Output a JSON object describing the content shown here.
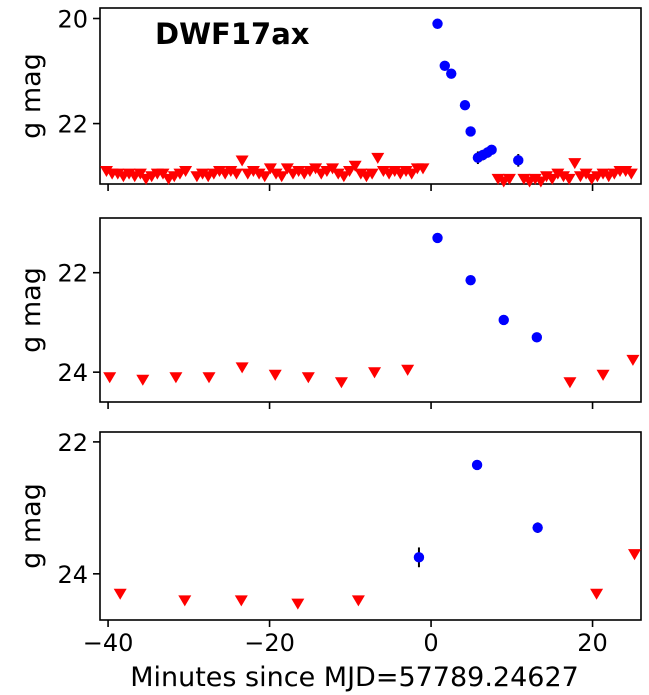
{
  "chart_data": [
    {
      "type": "scatter",
      "title": "DWF17ax",
      "ylabel": "g mag",
      "xlim": [
        -41,
        26
      ],
      "ylim": [
        23.15,
        19.8
      ],
      "y_inverted": true,
      "yticks": [
        20,
        22
      ],
      "xticks": [
        -40,
        -20,
        0,
        20
      ],
      "x_tick_labels_shown": false,
      "detections": {
        "name": "detections",
        "color": "#0000ff",
        "points": [
          {
            "x": 0.8,
            "y": 20.1
          },
          {
            "x": 1.7,
            "y": 20.9
          },
          {
            "x": 2.5,
            "y": 21.05
          },
          {
            "x": 4.2,
            "y": 21.65
          },
          {
            "x": 4.9,
            "y": 22.15
          },
          {
            "x": 5.8,
            "y": 22.65,
            "err": 0.12
          },
          {
            "x": 6.4,
            "y": 22.6,
            "err": 0.1
          },
          {
            "x": 7.0,
            "y": 22.55,
            "err": 0.1
          },
          {
            "x": 7.5,
            "y": 22.5,
            "err": 0.08
          },
          {
            "x": 10.8,
            "y": 22.7,
            "err": 0.12
          }
        ]
      },
      "upper_limits": {
        "name": "upper limits",
        "color": "#ff0000",
        "points": [
          {
            "x": -40.2,
            "y": 22.9
          },
          {
            "x": -39.5,
            "y": 22.95
          },
          {
            "x": -38.8,
            "y": 22.95
          },
          {
            "x": -38.1,
            "y": 23.0
          },
          {
            "x": -37.4,
            "y": 22.95
          },
          {
            "x": -36.7,
            "y": 23.0
          },
          {
            "x": -36.0,
            "y": 22.95
          },
          {
            "x": -35.3,
            "y": 23.05
          },
          {
            "x": -34.6,
            "y": 23.0
          },
          {
            "x": -33.9,
            "y": 22.95
          },
          {
            "x": -33.2,
            "y": 22.95
          },
          {
            "x": -32.5,
            "y": 23.05
          },
          {
            "x": -31.8,
            "y": 23.0
          },
          {
            "x": -31.1,
            "y": 22.95
          },
          {
            "x": -30.4,
            "y": 22.9
          },
          {
            "x": -29.0,
            "y": 23.0
          },
          {
            "x": -28.3,
            "y": 22.95
          },
          {
            "x": -27.6,
            "y": 23.0
          },
          {
            "x": -26.9,
            "y": 22.95
          },
          {
            "x": -26.2,
            "y": 22.9
          },
          {
            "x": -25.5,
            "y": 22.95
          },
          {
            "x": -24.8,
            "y": 22.9
          },
          {
            "x": -24.1,
            "y": 22.95
          },
          {
            "x": -23.4,
            "y": 22.7
          },
          {
            "x": -22.7,
            "y": 22.95
          },
          {
            "x": -22.0,
            "y": 22.9
          },
          {
            "x": -21.3,
            "y": 22.95
          },
          {
            "x": -20.6,
            "y": 23.0
          },
          {
            "x": -19.9,
            "y": 22.85
          },
          {
            "x": -19.2,
            "y": 22.95
          },
          {
            "x": -18.5,
            "y": 23.0
          },
          {
            "x": -17.8,
            "y": 22.85
          },
          {
            "x": -17.1,
            "y": 22.95
          },
          {
            "x": -16.4,
            "y": 22.9
          },
          {
            "x": -15.7,
            "y": 22.95
          },
          {
            "x": -15.0,
            "y": 22.9
          },
          {
            "x": -14.3,
            "y": 22.85
          },
          {
            "x": -13.6,
            "y": 22.95
          },
          {
            "x": -12.9,
            "y": 22.9
          },
          {
            "x": -12.2,
            "y": 22.85
          },
          {
            "x": -11.5,
            "y": 22.95
          },
          {
            "x": -10.8,
            "y": 23.0
          },
          {
            "x": -10.1,
            "y": 22.9
          },
          {
            "x": -9.4,
            "y": 22.8
          },
          {
            "x": -8.7,
            "y": 22.95
          },
          {
            "x": -8.0,
            "y": 23.0
          },
          {
            "x": -7.3,
            "y": 22.95
          },
          {
            "x": -6.6,
            "y": 22.65
          },
          {
            "x": -5.9,
            "y": 22.9
          },
          {
            "x": -5.2,
            "y": 22.95
          },
          {
            "x": -4.5,
            "y": 22.9
          },
          {
            "x": -3.8,
            "y": 22.95
          },
          {
            "x": -3.1,
            "y": 22.9
          },
          {
            "x": -2.4,
            "y": 22.95
          },
          {
            "x": -1.7,
            "y": 22.85
          },
          {
            "x": -1.0,
            "y": 22.85
          },
          {
            "x": 8.3,
            "y": 23.05
          },
          {
            "x": 9.0,
            "y": 23.1
          },
          {
            "x": 9.7,
            "y": 23.05
          },
          {
            "x": 11.5,
            "y": 23.05
          },
          {
            "x": 12.2,
            "y": 23.1
          },
          {
            "x": 12.9,
            "y": 23.05
          },
          {
            "x": 13.6,
            "y": 23.1
          },
          {
            "x": 14.3,
            "y": 23.0
          },
          {
            "x": 15.0,
            "y": 23.05
          },
          {
            "x": 15.7,
            "y": 22.95
          },
          {
            "x": 16.4,
            "y": 23.0
          },
          {
            "x": 17.1,
            "y": 23.05
          },
          {
            "x": 17.8,
            "y": 22.75
          },
          {
            "x": 18.5,
            "y": 23.0
          },
          {
            "x": 19.2,
            "y": 22.95
          },
          {
            "x": 19.9,
            "y": 23.05
          },
          {
            "x": 20.6,
            "y": 23.0
          },
          {
            "x": 21.3,
            "y": 22.95
          },
          {
            "x": 22.0,
            "y": 23.0
          },
          {
            "x": 22.7,
            "y": 22.95
          },
          {
            "x": 23.4,
            "y": 22.9
          },
          {
            "x": 24.1,
            "y": 22.9
          },
          {
            "x": 24.8,
            "y": 22.95
          }
        ]
      }
    },
    {
      "type": "scatter",
      "title": "",
      "ylabel": "g mag",
      "xlim": [
        -41,
        26
      ],
      "ylim": [
        24.6,
        20.9
      ],
      "y_inverted": true,
      "yticks": [
        22,
        24
      ],
      "xticks": [
        -40,
        -20,
        0,
        20
      ],
      "x_tick_labels_shown": false,
      "detections": {
        "name": "detections",
        "color": "#0000ff",
        "points": [
          {
            "x": 0.8,
            "y": 21.3
          },
          {
            "x": 4.9,
            "y": 22.15
          },
          {
            "x": 9.0,
            "y": 22.95
          },
          {
            "x": 13.1,
            "y": 23.3
          }
        ]
      },
      "upper_limits": {
        "name": "upper limits",
        "color": "#ff0000",
        "points": [
          {
            "x": -39.8,
            "y": 24.1
          },
          {
            "x": -35.7,
            "y": 24.15
          },
          {
            "x": -31.6,
            "y": 24.1
          },
          {
            "x": -27.5,
            "y": 24.1
          },
          {
            "x": -23.4,
            "y": 23.9
          },
          {
            "x": -19.3,
            "y": 24.05
          },
          {
            "x": -15.2,
            "y": 24.1
          },
          {
            "x": -11.1,
            "y": 24.2
          },
          {
            "x": -7.0,
            "y": 24.0
          },
          {
            "x": -2.9,
            "y": 23.95
          },
          {
            "x": 17.2,
            "y": 24.2
          },
          {
            "x": 21.3,
            "y": 24.05
          },
          {
            "x": 25.0,
            "y": 23.75
          }
        ]
      }
    },
    {
      "type": "scatter",
      "title": "",
      "ylabel": "g mag",
      "xlim": [
        -41,
        26
      ],
      "ylim": [
        24.7,
        21.85
      ],
      "y_inverted": true,
      "yticks": [
        22,
        24
      ],
      "xticks": [
        -40,
        -20,
        0,
        20
      ],
      "xticklabels": [
        "−40",
        "−20",
        "0",
        "20"
      ],
      "x_tick_labels_shown": true,
      "xlabel": "Minutes since MJD=57789.24627",
      "detections": {
        "name": "detections",
        "color": "#0000ff",
        "points": [
          {
            "x": -1.5,
            "y": 23.75,
            "err": 0.15
          },
          {
            "x": 5.7,
            "y": 22.35
          },
          {
            "x": 13.2,
            "y": 23.3,
            "err": 0.08
          }
        ]
      },
      "upper_limits": {
        "name": "upper limits",
        "color": "#ff0000",
        "points": [
          {
            "x": -38.5,
            "y": 24.3
          },
          {
            "x": -30.5,
            "y": 24.4
          },
          {
            "x": -23.5,
            "y": 24.4
          },
          {
            "x": -16.5,
            "y": 24.45
          },
          {
            "x": -9.0,
            "y": 24.4
          },
          {
            "x": 20.5,
            "y": 24.3
          },
          {
            "x": 25.2,
            "y": 23.7
          }
        ]
      }
    }
  ]
}
